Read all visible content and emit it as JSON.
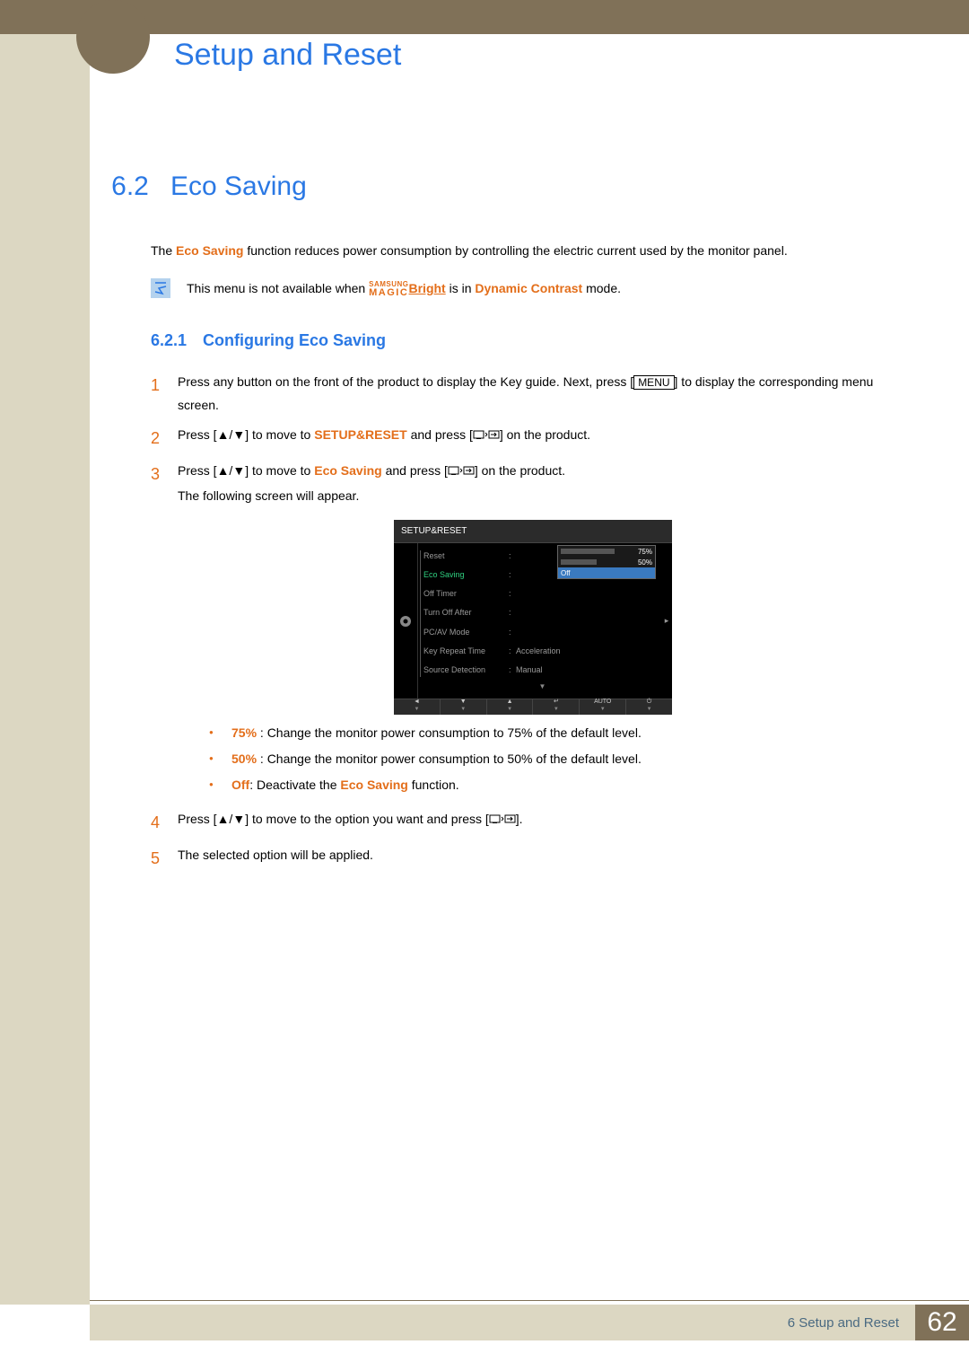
{
  "header": {
    "chapter_title": "Setup and Reset"
  },
  "section": {
    "number": "6.2",
    "title": "Eco Saving"
  },
  "intro": {
    "text_pre": "The ",
    "eco_saving": "Eco Saving",
    "text_post": " function reduces power consumption by controlling the electric current used by the monitor panel."
  },
  "note": {
    "pre": "This menu is not available when ",
    "magic_top": "SAMSUNG",
    "magic_bot": "MAGIC",
    "bright": "Bright",
    "mid": " is in ",
    "dynamic": "Dynamic Contrast",
    "post": " mode."
  },
  "subsection": {
    "number": "6.2.1",
    "title": "Configuring Eco Saving"
  },
  "steps": {
    "1": {
      "pre": "Press any button on the front of the product to display the Key guide. Next, press [",
      "menu": "MENU",
      "post": "] to display the corresponding menu screen."
    },
    "2": {
      "pre": "Press [",
      "mid1": "] to move to ",
      "setup": "SETUP&RESET",
      "mid2": " and press [",
      "post": "] on the product."
    },
    "3": {
      "pre": "Press [",
      "mid1": "] to move to ",
      "eco": "Eco Saving",
      "mid2": " and press [",
      "post": "] on the product.",
      "appear": "The following screen will appear."
    },
    "4": {
      "pre": "Press [",
      "mid": "] to move to the option you want and press [",
      "post": "]."
    },
    "5": {
      "text": "The selected option will be applied."
    }
  },
  "osd": {
    "title": "SETUP&RESET",
    "rows": [
      {
        "label": "Reset",
        "val": ""
      },
      {
        "label": "Eco Saving",
        "val": "",
        "active": true
      },
      {
        "label": "Off Timer",
        "val": ""
      },
      {
        "label": "Turn Off After",
        "val": ""
      },
      {
        "label": "PC/AV Mode",
        "val": ""
      },
      {
        "label": "Key Repeat Time",
        "val": "Acceleration"
      },
      {
        "label": "Source Detection",
        "val": "Manual"
      }
    ],
    "dropdown": [
      {
        "label": "75%",
        "width": 60
      },
      {
        "label": "50%",
        "width": 40
      },
      {
        "label": "Off",
        "sel": true
      }
    ],
    "footer": [
      "◄",
      "▼",
      "▲",
      "↵",
      "AUTO",
      "⏻"
    ]
  },
  "bullets": {
    "b75": {
      "label": "75%",
      "text": " : Change the monitor power consumption to 75% of the default level."
    },
    "b50": {
      "label": "50%",
      "text": " : Change the monitor power consumption to 50% of the default level."
    },
    "off": {
      "off": "Off",
      "mid": ": Deactivate the ",
      "eco": "Eco Saving",
      "post": " function."
    }
  },
  "footer": {
    "text": "6 Setup and Reset",
    "page": "62"
  },
  "colors": {
    "blue": "#2a78e4",
    "orange": "#e36e1a",
    "beige": "#dcd7c2",
    "brown": "#807158"
  }
}
